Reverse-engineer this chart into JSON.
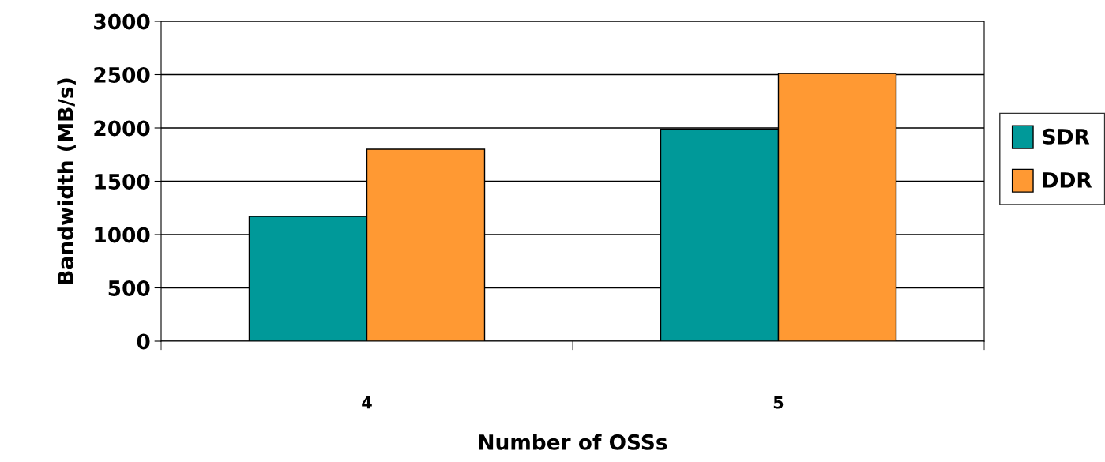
{
  "chart_data": {
    "type": "bar",
    "xlabel": "Number of OSSs",
    "ylabel": "Bandwidth (MB/s)",
    "categories": [
      "4",
      "5"
    ],
    "series": [
      {
        "name": "SDR",
        "color": "#009999",
        "values": [
          1170,
          1990
        ]
      },
      {
        "name": "DDR",
        "color": "#ff9933",
        "values": [
          1800,
          2510
        ]
      }
    ],
    "ylim": [
      0,
      3000
    ],
    "yticks": [
      0,
      500,
      1000,
      1500,
      2000,
      2500,
      3000
    ],
    "grid": "y",
    "legend": "right"
  }
}
